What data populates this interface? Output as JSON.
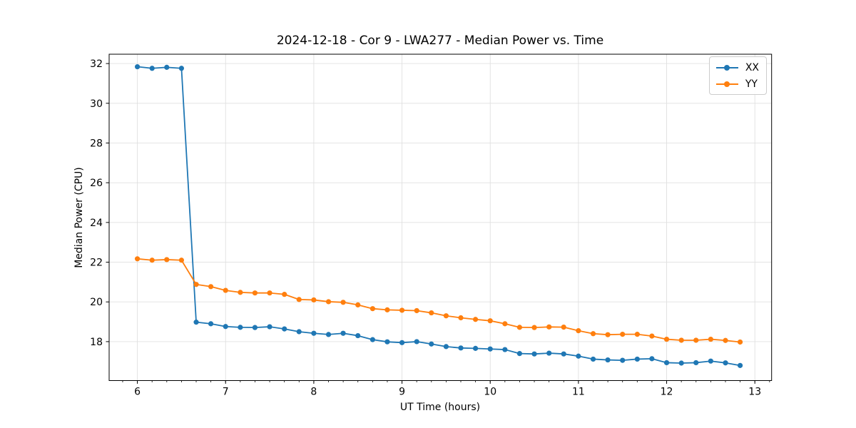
{
  "chart_data": {
    "type": "line",
    "title": "2024-12-18 - Cor 9 - LWA277 - Median Power vs. Time",
    "xlabel": "UT Time (hours)",
    "ylabel": "Median Power (CPU)",
    "xlim": [
      5.68,
      13.19
    ],
    "ylim": [
      16.04,
      32.47
    ],
    "x_ticks": [
      6,
      7,
      8,
      9,
      10,
      11,
      12,
      13
    ],
    "y_ticks": [
      18,
      20,
      22,
      24,
      26,
      28,
      30,
      32
    ],
    "x_minor_tick_step": 0.166667,
    "grid": true,
    "grid_color": "#e0e0e0",
    "legend_position": "upper right",
    "marker": "o",
    "x": [
      6.0,
      6.167,
      6.333,
      6.5,
      6.667,
      6.833,
      7.0,
      7.167,
      7.333,
      7.5,
      7.667,
      7.833,
      8.0,
      8.167,
      8.333,
      8.5,
      8.667,
      8.833,
      9.0,
      9.167,
      9.333,
      9.5,
      9.667,
      9.833,
      10.0,
      10.167,
      10.333,
      10.5,
      10.667,
      10.833,
      11.0,
      11.167,
      11.333,
      11.5,
      11.667,
      11.833,
      12.0,
      12.167,
      12.333,
      12.5,
      12.667,
      12.833
    ],
    "series": [
      {
        "name": "XX",
        "color": "#1f77b4",
        "values": [
          31.84,
          31.76,
          31.81,
          31.76,
          18.98,
          18.9,
          18.76,
          18.72,
          18.71,
          18.75,
          18.64,
          18.5,
          18.42,
          18.36,
          18.42,
          18.3,
          18.1,
          17.99,
          17.95,
          18.0,
          17.88,
          17.75,
          17.68,
          17.66,
          17.63,
          17.6,
          17.4,
          17.38,
          17.42,
          17.38,
          17.27,
          17.12,
          17.08,
          17.06,
          17.12,
          17.14,
          16.94,
          16.92,
          16.94,
          17.02,
          16.93,
          16.8
        ]
      },
      {
        "name": "YY",
        "color": "#ff7f0e",
        "values": [
          22.17,
          22.1,
          22.13,
          22.1,
          20.88,
          20.77,
          20.58,
          20.48,
          20.45,
          20.45,
          20.38,
          20.12,
          20.1,
          20.01,
          19.98,
          19.85,
          19.66,
          19.6,
          19.58,
          19.56,
          19.45,
          19.3,
          19.2,
          19.12,
          19.05,
          18.9,
          18.72,
          18.71,
          18.74,
          18.73,
          18.55,
          18.4,
          18.35,
          18.37,
          18.37,
          18.28,
          18.12,
          18.07,
          18.07,
          18.12,
          18.06,
          17.98
        ]
      }
    ]
  }
}
